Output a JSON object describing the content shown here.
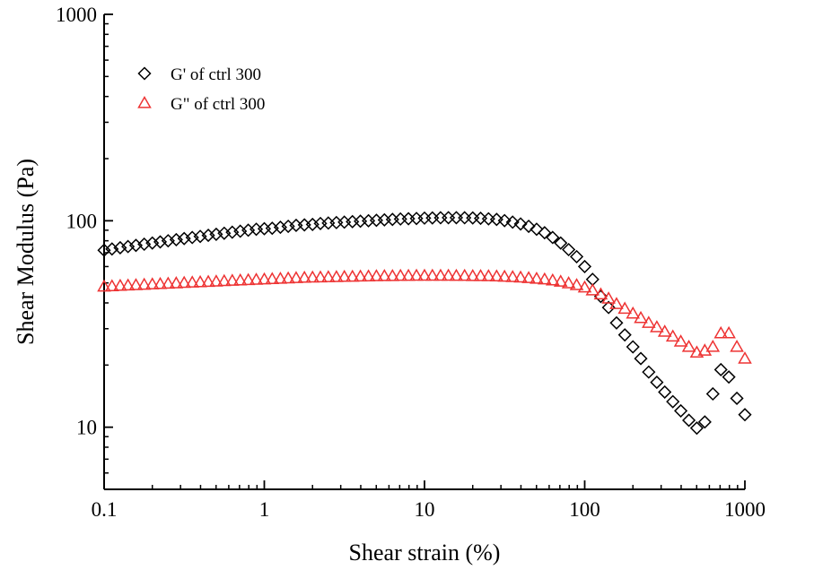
{
  "chart_data": {
    "type": "scatter",
    "title": "",
    "xlabel": "Shear strain (%)",
    "ylabel": "Shear Modulus (Pa)",
    "x_scale": "log",
    "y_scale": "log",
    "xlim": [
      0.1,
      1000
    ],
    "ylim": [
      5,
      1000
    ],
    "x_ticks": [
      {
        "value": 0.1,
        "label": "0.1"
      },
      {
        "value": 1,
        "label": "1"
      },
      {
        "value": 10,
        "label": "10"
      },
      {
        "value": 100,
        "label": "100"
      },
      {
        "value": 1000,
        "label": "1000"
      }
    ],
    "y_ticks": [
      {
        "value": 10,
        "label": "10"
      },
      {
        "value": 100,
        "label": "100"
      },
      {
        "value": 1000,
        "label": "1000"
      }
    ],
    "grid": false,
    "legend_position": "top-left",
    "series": [
      {
        "name": "G' of ctrl 300",
        "marker": "diamond-open",
        "color": "#000000",
        "points": [
          [
            0.1,
            72
          ],
          [
            0.112,
            73
          ],
          [
            0.126,
            74
          ],
          [
            0.141,
            75
          ],
          [
            0.158,
            76
          ],
          [
            0.178,
            77
          ],
          [
            0.2,
            78
          ],
          [
            0.224,
            79
          ],
          [
            0.251,
            80
          ],
          [
            0.282,
            81
          ],
          [
            0.316,
            82
          ],
          [
            0.355,
            83
          ],
          [
            0.398,
            84
          ],
          [
            0.447,
            85
          ],
          [
            0.501,
            86
          ],
          [
            0.562,
            87
          ],
          [
            0.631,
            88
          ],
          [
            0.708,
            89
          ],
          [
            0.794,
            90
          ],
          [
            0.891,
            91
          ],
          [
            1.0,
            91.5
          ],
          [
            1.12,
            92
          ],
          [
            1.26,
            93
          ],
          [
            1.41,
            94
          ],
          [
            1.58,
            95
          ],
          [
            1.78,
            95.5
          ],
          [
            2.0,
            96
          ],
          [
            2.24,
            97
          ],
          [
            2.51,
            97.5
          ],
          [
            2.82,
            98
          ],
          [
            3.16,
            98.5
          ],
          [
            3.55,
            99
          ],
          [
            3.98,
            99.5
          ],
          [
            4.47,
            100
          ],
          [
            5.01,
            100.5
          ],
          [
            5.62,
            101
          ],
          [
            6.31,
            101.5
          ],
          [
            7.08,
            102
          ],
          [
            7.94,
            102.3
          ],
          [
            8.91,
            102.6
          ],
          [
            10.0,
            103
          ],
          [
            11.2,
            103.2
          ],
          [
            12.6,
            103.4
          ],
          [
            14.1,
            103.5
          ],
          [
            15.8,
            103.5
          ],
          [
            17.8,
            103.4
          ],
          [
            20.0,
            103.2
          ],
          [
            22.4,
            102.8
          ],
          [
            25.1,
            102.2
          ],
          [
            28.2,
            101.5
          ],
          [
            31.6,
            100.2
          ],
          [
            35.5,
            98.5
          ],
          [
            39.8,
            96.5
          ],
          [
            44.7,
            94
          ],
          [
            50.1,
            91
          ],
          [
            56.2,
            87.5
          ],
          [
            63.1,
            83
          ],
          [
            70.8,
            78
          ],
          [
            79.4,
            72.5
          ],
          [
            89.1,
            67
          ],
          [
            100,
            60
          ],
          [
            112,
            52
          ],
          [
            126,
            43
          ],
          [
            141,
            38
          ],
          [
            158,
            32
          ],
          [
            178,
            28
          ],
          [
            200,
            24.5
          ],
          [
            224,
            21.5
          ],
          [
            251,
            18.5
          ],
          [
            282,
            16.5
          ],
          [
            316,
            14.8
          ],
          [
            355,
            13.3
          ],
          [
            398,
            12
          ],
          [
            447,
            10.8
          ],
          [
            501,
            9.9
          ],
          [
            562,
            10.6
          ],
          [
            631,
            14.5
          ],
          [
            708,
            19
          ],
          [
            794,
            17.5
          ],
          [
            891,
            13.8
          ],
          [
            1000,
            11.5
          ]
        ]
      },
      {
        "name": "G\" of ctrl 300",
        "marker": "triangle-open",
        "color": "#ee3333",
        "points": [
          [
            0.1,
            48
          ],
          [
            0.112,
            48.2
          ],
          [
            0.126,
            48.4
          ],
          [
            0.141,
            48.6
          ],
          [
            0.158,
            48.8
          ],
          [
            0.178,
            49
          ],
          [
            0.2,
            49.2
          ],
          [
            0.224,
            49.4
          ],
          [
            0.251,
            49.6
          ],
          [
            0.282,
            49.8
          ],
          [
            0.316,
            50
          ],
          [
            0.355,
            50.2
          ],
          [
            0.398,
            50.4
          ],
          [
            0.447,
            50.6
          ],
          [
            0.501,
            50.8
          ],
          [
            0.562,
            51
          ],
          [
            0.631,
            51.2
          ],
          [
            0.708,
            51.4
          ],
          [
            0.794,
            51.6
          ],
          [
            0.891,
            51.8
          ],
          [
            1.0,
            52
          ],
          [
            1.12,
            52.2
          ],
          [
            1.26,
            52.4
          ],
          [
            1.41,
            52.6
          ],
          [
            1.58,
            52.8
          ],
          [
            1.78,
            53
          ],
          [
            2.0,
            53.1
          ],
          [
            2.24,
            53.2
          ],
          [
            2.51,
            53.3
          ],
          [
            2.82,
            53.4
          ],
          [
            3.16,
            53.5
          ],
          [
            3.55,
            53.6
          ],
          [
            3.98,
            53.7
          ],
          [
            4.47,
            53.8
          ],
          [
            5.01,
            53.9
          ],
          [
            5.62,
            54
          ],
          [
            6.31,
            54
          ],
          [
            7.08,
            54.1
          ],
          [
            7.94,
            54.1
          ],
          [
            8.91,
            54.2
          ],
          [
            10.0,
            54.2
          ],
          [
            11.2,
            54.2
          ],
          [
            12.6,
            54.2
          ],
          [
            14.1,
            54.2
          ],
          [
            15.8,
            54.1
          ],
          [
            17.8,
            54.1
          ],
          [
            20.0,
            54
          ],
          [
            22.4,
            54
          ],
          [
            25.1,
            53.9
          ],
          [
            28.2,
            53.8
          ],
          [
            31.6,
            53.6
          ],
          [
            35.5,
            53.4
          ],
          [
            39.8,
            53.1
          ],
          [
            44.7,
            52.8
          ],
          [
            50.1,
            52.4
          ],
          [
            56.2,
            52
          ],
          [
            63.1,
            51.4
          ],
          [
            70.8,
            50.7
          ],
          [
            79.4,
            49.8
          ],
          [
            89.1,
            48.8
          ],
          [
            100,
            47.5
          ],
          [
            112,
            46
          ],
          [
            126,
            44
          ],
          [
            141,
            42
          ],
          [
            158,
            39.5
          ],
          [
            178,
            37.5
          ],
          [
            200,
            35.5
          ],
          [
            224,
            33.8
          ],
          [
            251,
            32
          ],
          [
            282,
            30.5
          ],
          [
            316,
            29
          ],
          [
            355,
            27.5
          ],
          [
            398,
            26
          ],
          [
            447,
            24.5
          ],
          [
            501,
            23
          ],
          [
            562,
            23.5
          ],
          [
            631,
            24.5
          ],
          [
            708,
            28.5
          ],
          [
            794,
            28.5
          ],
          [
            891,
            24.5
          ],
          [
            1000,
            21.5
          ]
        ]
      }
    ]
  }
}
